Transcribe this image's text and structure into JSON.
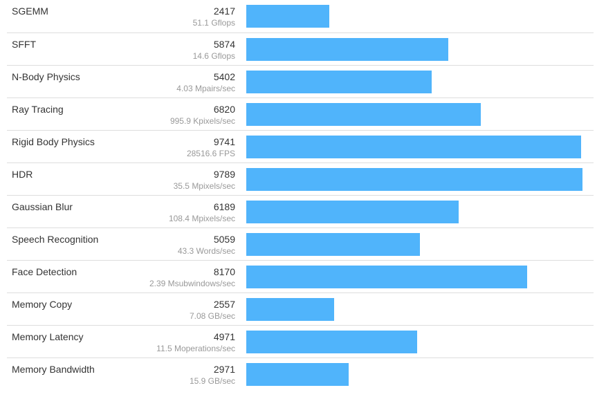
{
  "chart_data": {
    "type": "bar",
    "orientation": "horizontal",
    "bar_color": "#50b4fb",
    "xlim": [
      0,
      9789
    ],
    "rows": [
      {
        "label": "SGEMM",
        "score": 2417,
        "score_text": "2417",
        "sub": "51.1 Gflops"
      },
      {
        "label": "SFFT",
        "score": 5874,
        "score_text": "5874",
        "sub": "14.6 Gflops"
      },
      {
        "label": "N-Body Physics",
        "score": 5402,
        "score_text": "5402",
        "sub": "4.03 Mpairs/sec"
      },
      {
        "label": "Ray Tracing",
        "score": 6820,
        "score_text": "6820",
        "sub": "995.9 Kpixels/sec"
      },
      {
        "label": "Rigid Body Physics",
        "score": 9741,
        "score_text": "9741",
        "sub": "28516.6 FPS"
      },
      {
        "label": "HDR",
        "score": 9789,
        "score_text": "9789",
        "sub": "35.5 Mpixels/sec"
      },
      {
        "label": "Gaussian Blur",
        "score": 6189,
        "score_text": "6189",
        "sub": "108.4 Mpixels/sec"
      },
      {
        "label": "Speech Recognition",
        "score": 5059,
        "score_text": "5059",
        "sub": "43.3 Words/sec"
      },
      {
        "label": "Face Detection",
        "score": 8170,
        "score_text": "8170",
        "sub": "2.39 Msubwindows/sec"
      },
      {
        "label": "Memory Copy",
        "score": 2557,
        "score_text": "2557",
        "sub": "7.08 GB/sec"
      },
      {
        "label": "Memory Latency",
        "score": 4971,
        "score_text": "4971",
        "sub": "11.5 Moperations/sec"
      },
      {
        "label": "Memory Bandwidth",
        "score": 2971,
        "score_text": "2971",
        "sub": "15.9 GB/sec"
      }
    ]
  }
}
